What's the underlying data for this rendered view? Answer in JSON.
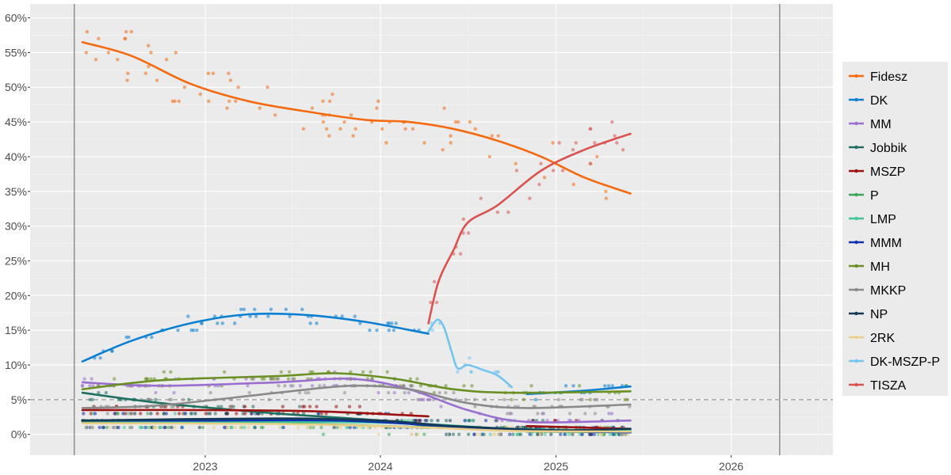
{
  "chart_data": {
    "type": "line",
    "title": "",
    "xlabel": "",
    "ylabel": "",
    "x_ticks": [
      "2023",
      "2024",
      "2025",
      "2026"
    ],
    "y_ticks": [
      "0%",
      "5%",
      "10%",
      "15%",
      "20%",
      "25%",
      "30%",
      "35%",
      "40%",
      "45%",
      "50%",
      "55%",
      "60%"
    ],
    "xlim": [
      "2022-01-01",
      "2026-08-01"
    ],
    "ylim": [
      -3,
      62
    ],
    "threshold": 5,
    "period_lines": [
      "2022-04-03",
      "2026-04-12"
    ],
    "legend_position": "right",
    "grid": true,
    "series": [
      {
        "name": "Fidesz",
        "color": "#f36a10",
        "trend": [
          [
            "2022-04-20",
            56.5
          ],
          [
            "2022-08-01",
            54.5
          ],
          [
            "2022-12-01",
            50.5
          ],
          [
            "2023-04-01",
            48.0
          ],
          [
            "2023-08-01",
            46.5
          ],
          [
            "2023-12-01",
            45.3
          ],
          [
            "2024-03-01",
            45.0
          ],
          [
            "2024-06-01",
            44.0
          ],
          [
            "2024-09-01",
            42.3
          ],
          [
            "2024-12-01",
            40.0
          ],
          [
            "2025-03-01",
            37.0
          ],
          [
            "2025-06-05",
            34.7
          ]
        ]
      },
      {
        "name": "DK",
        "color": "#0b7fd0",
        "trend": [
          [
            "2022-04-20",
            10.5
          ],
          [
            "2022-08-01",
            13.5
          ],
          [
            "2022-12-01",
            16.0
          ],
          [
            "2023-04-01",
            17.3
          ],
          [
            "2023-08-01",
            17.2
          ],
          [
            "2023-12-01",
            16.2
          ],
          [
            "2024-04-10",
            14.5
          ]
        ],
        "trend2": [
          [
            "2024-11-01",
            5.8
          ],
          [
            "2025-03-01",
            6.3
          ],
          [
            "2025-06-05",
            6.9
          ]
        ]
      },
      {
        "name": "MM",
        "color": "#9b6fcf",
        "trend": [
          [
            "2022-04-20",
            7.5
          ],
          [
            "2022-10-01",
            7.0
          ],
          [
            "2023-06-01",
            7.5
          ],
          [
            "2023-11-01",
            8.0
          ],
          [
            "2024-03-01",
            6.5
          ],
          [
            "2024-07-01",
            3.5
          ],
          [
            "2024-11-01",
            1.8
          ],
          [
            "2025-06-05",
            2.0
          ]
        ]
      },
      {
        "name": "Jobbik",
        "color": "#1f7060",
        "trend": [
          [
            "2022-04-20",
            6.0
          ],
          [
            "2022-10-01",
            4.5
          ],
          [
            "2023-06-01",
            3.0
          ],
          [
            "2024-01-01",
            2.0
          ],
          [
            "2024-06-01",
            1.0
          ],
          [
            "2025-06-05",
            0.5
          ]
        ]
      },
      {
        "name": "MSZP",
        "color": "#9b1010",
        "trend": [
          [
            "2022-04-20",
            3.5
          ],
          [
            "2023-01-01",
            3.5
          ],
          [
            "2023-09-01",
            3.3
          ],
          [
            "2024-04-10",
            2.6
          ]
        ],
        "trend2": [
          [
            "2024-11-01",
            1.2
          ],
          [
            "2025-06-05",
            0.8
          ]
        ]
      },
      {
        "name": "P",
        "color": "#3aa858",
        "trend": [
          [
            "2022-04-20",
            1.8
          ],
          [
            "2023-06-01",
            1.6
          ],
          [
            "2024-04-10",
            1.0
          ]
        ],
        "trend2": [
          [
            "2024-11-01",
            0.4
          ],
          [
            "2025-06-05",
            0.3
          ]
        ]
      },
      {
        "name": "LMP",
        "color": "#3fc79a",
        "trend": [
          [
            "2022-04-20",
            2.0
          ],
          [
            "2023-01-01",
            1.8
          ],
          [
            "2023-10-01",
            1.8
          ],
          [
            "2024-04-01",
            1.5
          ],
          [
            "2024-10-01",
            0.8
          ],
          [
            "2025-06-05",
            0.5
          ]
        ]
      },
      {
        "name": "MMM",
        "color": "#1030b0",
        "trend": [
          [
            "2022-04-20",
            2.0
          ],
          [
            "2023-01-01",
            2.0
          ],
          [
            "2023-10-01",
            2.0
          ],
          [
            "2024-04-01",
            1.4
          ],
          [
            "2024-10-01",
            0.6
          ],
          [
            "2025-06-05",
            0.3
          ]
        ]
      },
      {
        "name": "MH",
        "color": "#6a8f23",
        "trend": [
          [
            "2022-04-20",
            6.5
          ],
          [
            "2022-10-01",
            7.8
          ],
          [
            "2023-06-01",
            8.4
          ],
          [
            "2023-10-01",
            8.8
          ],
          [
            "2024-02-01",
            8.0
          ],
          [
            "2024-06-01",
            6.5
          ],
          [
            "2024-10-01",
            6.0
          ],
          [
            "2025-06-05",
            6.2
          ]
        ]
      },
      {
        "name": "MKKP",
        "color": "#8a8a8a",
        "trend": [
          [
            "2022-04-20",
            3.8
          ],
          [
            "2022-10-01",
            4.2
          ],
          [
            "2023-06-01",
            6.0
          ],
          [
            "2023-11-01",
            7.0
          ],
          [
            "2024-03-01",
            6.5
          ],
          [
            "2024-07-01",
            4.5
          ],
          [
            "2024-11-01",
            3.8
          ],
          [
            "2025-06-05",
            4.3
          ]
        ]
      },
      {
        "name": "NP",
        "color": "#153a55",
        "trend": [
          [
            "2022-04-20",
            2.0
          ],
          [
            "2023-06-01",
            2.3
          ],
          [
            "2024-01-01",
            2.0
          ],
          [
            "2024-06-01",
            1.2
          ],
          [
            "2025-01-01",
            0.6
          ],
          [
            "2025-06-05",
            0.8
          ]
        ]
      },
      {
        "name": "2RK",
        "color": "#e9cf8a",
        "trend": [
          [
            "2022-04-20",
            1.6
          ],
          [
            "2023-06-01",
            1.5
          ],
          [
            "2024-04-01",
            1.0
          ],
          [
            "2024-10-01",
            0.5
          ],
          [
            "2025-06-05",
            0.4
          ]
        ]
      },
      {
        "name": "DK-MSZP-P",
        "color": "#74c4f0",
        "trend": [
          [
            "2024-04-10",
            14.8
          ],
          [
            "2024-04-28",
            16.5
          ],
          [
            "2024-05-12",
            15.5
          ],
          [
            "2024-05-28",
            12.0
          ],
          [
            "2024-06-10",
            9.5
          ],
          [
            "2024-07-01",
            10.0
          ],
          [
            "2024-08-01",
            9.3
          ],
          [
            "2024-09-01",
            8.5
          ],
          [
            "2024-10-01",
            6.8
          ]
        ]
      },
      {
        "name": "TISZA",
        "color": "#d9534f",
        "trend": [
          [
            "2024-04-10",
            16.0
          ],
          [
            "2024-05-01",
            22.0
          ],
          [
            "2024-06-01",
            26.5
          ],
          [
            "2024-07-01",
            30.5
          ],
          [
            "2024-09-01",
            33.0
          ],
          [
            "2024-12-01",
            38.0
          ],
          [
            "2025-03-01",
            41.0
          ],
          [
            "2025-06-05",
            43.3
          ]
        ]
      }
    ]
  }
}
